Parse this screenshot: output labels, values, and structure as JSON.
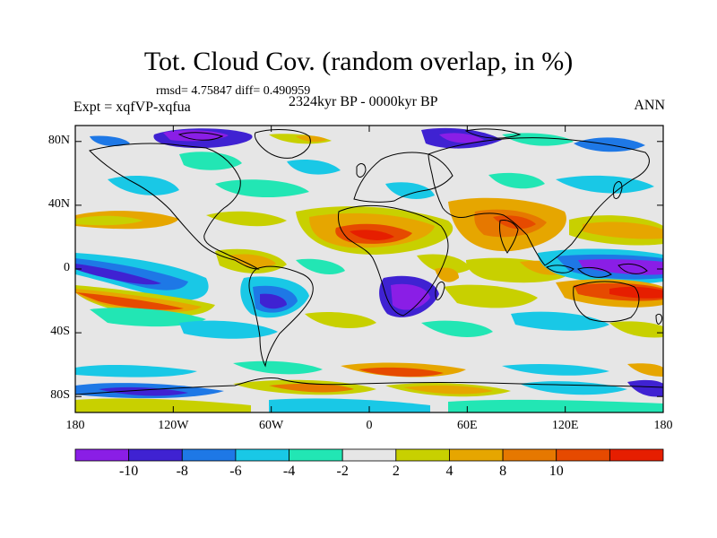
{
  "title": "Tot. Cloud Cov. (random overlap, in %)",
  "stats": "rmsd= 4.75847 diff= 0.490959",
  "experiment": "Expt = xqfVP-xqfua",
  "period": "2324kyr BP - 0000kyr BP",
  "season": "ANN",
  "map": {
    "projection": "cylindrical equidistant",
    "lon_range": [
      -180,
      180
    ],
    "lat_range": [
      -90,
      90
    ],
    "x_ticks": [
      "180",
      "120W",
      "60W",
      "0",
      "60E",
      "120E",
      "180"
    ],
    "y_ticks": [
      "80N",
      "40N",
      "0",
      "40S",
      "80S"
    ],
    "background_color": "#e6e6e6"
  },
  "colorbar": {
    "labels": [
      "-10",
      "-8",
      "-6",
      "-4",
      "-2",
      "2",
      "4",
      "8",
      "10"
    ],
    "colors": [
      "#8a1ee6",
      "#3f22d2",
      "#1e78e6",
      "#19c8e6",
      "#22e6b4",
      "#e6e6e6",
      "#c8d000",
      "#e6a600",
      "#e67800",
      "#e64a00",
      "#e61e00"
    ]
  }
}
